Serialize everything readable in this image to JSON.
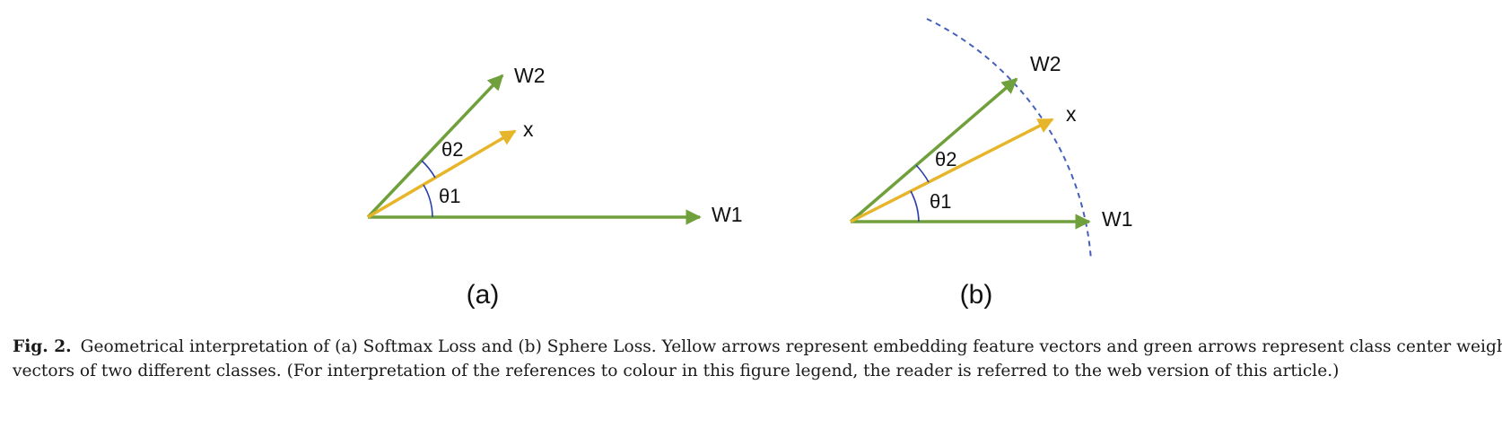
{
  "colors": {
    "weight_vector": "#70a03c",
    "feature_vector": "#e7b52a",
    "angle_arc": "#2a3fa8",
    "sphere": "#4560bb"
  },
  "panel_a": {
    "label": "(a)",
    "vectors": {
      "w1": "W1",
      "w2": "W2",
      "x": "x"
    },
    "angles": {
      "theta1": "θ1",
      "theta2": "θ2"
    }
  },
  "panel_b": {
    "label": "(b)",
    "vectors": {
      "w1": "W1",
      "w2": "W2",
      "x": "x"
    },
    "angles": {
      "theta1": "θ1",
      "theta2": "θ2"
    }
  },
  "caption": {
    "figure_label": "Fig. 2.",
    "line1": "Geometrical interpretation of (a) Softmax Loss and (b) Sphere Loss. Yellow arrows represent embedding feature vectors and green arrows represent class center weight",
    "line2": "vectors of two different classes. (For interpretation of the references to colour in this figure legend, the reader is referred to the web version of this article.)"
  }
}
